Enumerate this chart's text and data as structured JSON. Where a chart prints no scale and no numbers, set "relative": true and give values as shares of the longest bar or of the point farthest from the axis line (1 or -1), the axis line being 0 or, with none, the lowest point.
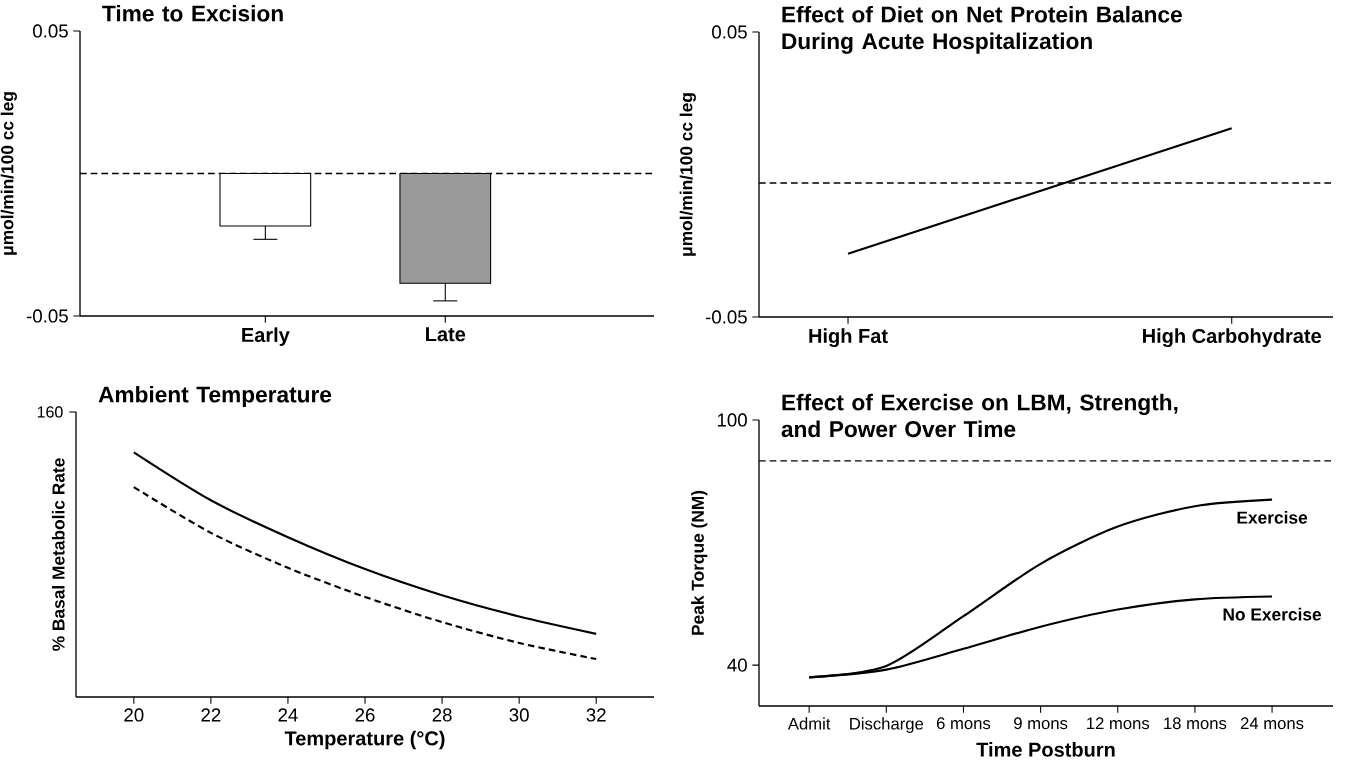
{
  "chart_data": [
    {
      "type": "bar",
      "title": "Time to Excision",
      "ylabel": "μmol/min/100 cc leg",
      "categories": [
        "Early",
        "Late"
      ],
      "values": [
        -0.0184,
        -0.0385
      ],
      "colors": [
        "#ffffff",
        "#9a9a9a"
      ],
      "errors": [
        [
          -0.0231,
          -0.0184
        ],
        [
          -0.0447,
          -0.0385
        ]
      ],
      "ylim": [
        -0.05,
        0.05
      ],
      "yticks": [
        -0.05,
        0.05
      ],
      "ref_lines": [
        {
          "axis": "y",
          "value": 0,
          "line_style": "dashed"
        }
      ]
    },
    {
      "type": "line",
      "title": "Effect of Diet on Net Protein Balance During Acute Hospitalization",
      "ylabel": "μmol/min/100 cc leg",
      "categories": [
        "High Fat",
        "High Carbohydrate"
      ],
      "values": [
        -0.0278,
        0.0162
      ],
      "color": "#000000",
      "ylim": [
        -0.05,
        0.05
      ],
      "yticks": [
        -0.05,
        0.05
      ],
      "marker": "none",
      "ref_lines": [
        {
          "axis": "y",
          "value": -0.003,
          "line_style": "dashed"
        }
      ]
    },
    {
      "type": "line",
      "title": "Ambient Temperature",
      "xlabel": "Temperature (°C)",
      "ylabel": "% Basal Metabolic Rate",
      "relative": true,
      "tick_labels": "x",
      "marker": "none",
      "x": [
        20,
        22,
        24,
        26,
        28,
        30,
        32
      ],
      "xlim": [
        18.5,
        33.5
      ],
      "xticks": [
        20,
        22,
        24,
        26,
        28,
        30,
        32
      ],
      "annotations": [
        "160"
      ],
      "series": [
        {
          "color": "#000000",
          "values": [
            1.0,
            0.804,
            0.653,
            0.523,
            0.416,
            0.329,
            0.258
          ]
        },
        {
          "color": "#000000",
          "line_style": "dashed",
          "values": [
            0.858,
            0.671,
            0.528,
            0.409,
            0.306,
            0.221,
            0.155
          ]
        }
      ]
    },
    {
      "type": "line",
      "title": "Effect of Exercise on LBM, Strength, and Power Over Time",
      "xlabel": "Time Postburn",
      "ylabel": "Peak Torque (NM)",
      "marker": "none",
      "categories": [
        "Admit",
        "Discharge",
        "6 mons",
        "9 mons",
        "12 mons",
        "18 mons",
        "24 mons"
      ],
      "ylim": [
        30,
        100
      ],
      "yticks": [
        40,
        100
      ],
      "ref_lines": [
        {
          "axis": "y",
          "value": 90,
          "line_style": "dashed"
        }
      ],
      "series": [
        {
          "name": "Exercise",
          "color": "#000000",
          "values": [
            37.0,
            39.8,
            52.0,
            64.8,
            73.9,
            78.9,
            80.5
          ]
        },
        {
          "name": "No Exercise",
          "color": "#000000",
          "values": [
            37.0,
            38.9,
            44.0,
            49.4,
            53.6,
            56.1,
            56.8
          ]
        }
      ]
    }
  ]
}
